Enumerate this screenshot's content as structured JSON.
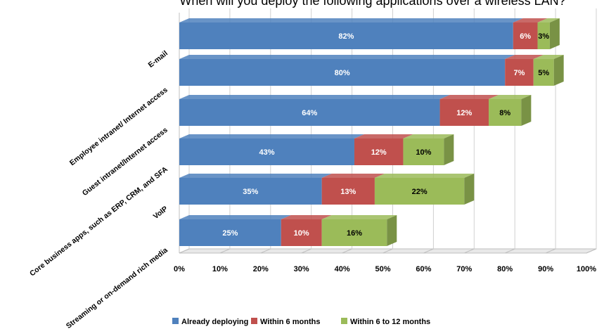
{
  "chart_data": {
    "type": "bar",
    "orientation": "horizontal",
    "stacked": true,
    "title": "When will you deploy the following applications over a wireless LAN?",
    "categories": [
      "E-mail",
      "Employee intranet/ Internet access",
      "Guest intranet/Internet access",
      "Core business apps, such as ERP, CRM, and SFA",
      "VoIP",
      "Streaming or on-demand rich media"
    ],
    "series": [
      {
        "name": "Already deploying",
        "values": [
          82,
          80,
          64,
          43,
          35,
          25
        ]
      },
      {
        "name": "Within 6 months",
        "values": [
          6,
          7,
          12,
          12,
          13,
          10
        ]
      },
      {
        "name": "Within 6 to 12 months",
        "values": [
          3,
          5,
          8,
          10,
          22,
          16
        ]
      }
    ],
    "xlim": [
      0,
      100
    ],
    "x_ticks": [
      "0%",
      "10%",
      "20%",
      "30%",
      "40%",
      "50%",
      "60%",
      "70%",
      "80%",
      "90%",
      "100%"
    ],
    "value_suffix": "%",
    "grid": true,
    "legend_position": "bottom",
    "colors": [
      "#4f81bd",
      "#c0504d",
      "#9bbb59"
    ],
    "label_colors": [
      "#ffffff",
      "#ffffff",
      "#000000"
    ]
  }
}
